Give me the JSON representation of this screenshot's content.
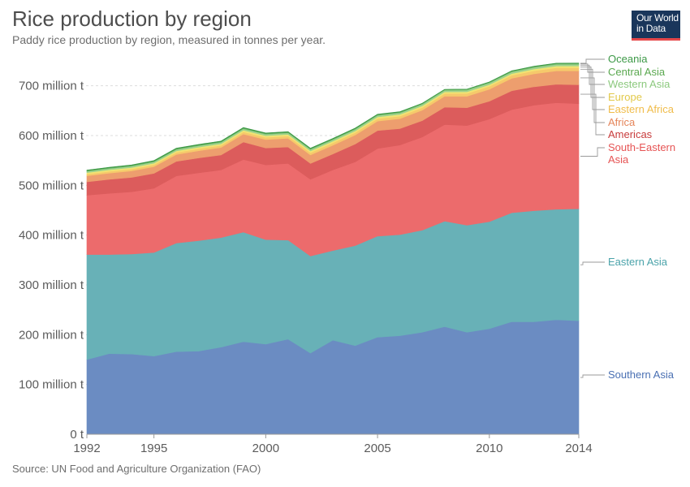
{
  "header": {
    "title": "Rice production by region",
    "subtitle": "Paddy rice production by region, measured in tonnes per year.",
    "logo_line1": "Our World",
    "logo_line2": "in Data"
  },
  "footer": {
    "source": "Source: UN Food and Agriculture Organization (FAO)"
  },
  "chart_data": {
    "type": "area",
    "stacked": true,
    "title": "Rice production by region",
    "subtitle": "Paddy rice production by region, measured in tonnes per year.",
    "xlabel": "",
    "ylabel": "",
    "xlim": [
      1992,
      2014
    ],
    "ylim": [
      0,
      750000000
    ],
    "x_ticks": [
      "1992",
      "1995",
      "2000",
      "2005",
      "2010",
      "2014"
    ],
    "x_tick_values": [
      1992,
      1995,
      2000,
      2005,
      2010,
      2014
    ],
    "y_ticks": [
      "0 t",
      "100 million t",
      "200 million t",
      "300 million t",
      "400 million t",
      "500 million t",
      "600 million t",
      "700 million t"
    ],
    "y_tick_values": [
      0,
      100000000,
      200000000,
      300000000,
      400000000,
      500000000,
      600000000,
      700000000
    ],
    "grid": "horizontal dashed",
    "legend": "right",
    "x": [
      1992,
      1993,
      1994,
      1995,
      1996,
      1997,
      1998,
      1999,
      2000,
      2001,
      2002,
      2003,
      2004,
      2005,
      2006,
      2007,
      2008,
      2009,
      2010,
      2011,
      2012,
      2013,
      2014
    ],
    "series": [
      {
        "name": "Southern Asia",
        "color": "#6b8cc2",
        "values": [
          150000000,
          162000000,
          161000000,
          157000000,
          166000000,
          167000000,
          175000000,
          186000000,
          181000000,
          191000000,
          163000000,
          189000000,
          178000000,
          195000000,
          198000000,
          205000000,
          216000000,
          205000000,
          212000000,
          226000000,
          226000000,
          230000000,
          228000000
        ]
      },
      {
        "name": "Eastern Asia",
        "color": "#68b1b7",
        "values": [
          211000000,
          199000000,
          201000000,
          208000000,
          218000000,
          222000000,
          220000000,
          220000000,
          210000000,
          199000000,
          195000000,
          180000000,
          201000000,
          203000000,
          203000000,
          205000000,
          212000000,
          215000000,
          215000000,
          219000000,
          223000000,
          222000000,
          225000000
        ]
      },
      {
        "name": "South-Eastern Asia",
        "color": "#ec6b6c",
        "values": [
          119000000,
          123000000,
          125000000,
          129000000,
          135000000,
          136000000,
          136000000,
          146000000,
          150000000,
          154000000,
          154000000,
          162000000,
          168000000,
          176000000,
          180000000,
          187000000,
          194000000,
          200000000,
          206000000,
          207000000,
          212000000,
          214000000,
          211000000
        ]
      },
      {
        "name": "Americas",
        "color": "#dc5c5c",
        "values": [
          27000000,
          28000000,
          29000000,
          30000000,
          29000000,
          30000000,
          30000000,
          35000000,
          34000000,
          33000000,
          32000000,
          32000000,
          36000000,
          36000000,
          33000000,
          33000000,
          35000000,
          36000000,
          36000000,
          38000000,
          37000000,
          37000000,
          38000000
        ]
      },
      {
        "name": "Africa",
        "color": "#ed9e6e",
        "values": [
          12000000,
          12500000,
          13000000,
          13500000,
          14000000,
          14500000,
          15000000,
          16000000,
          17000000,
          17500000,
          17000000,
          17500000,
          18000000,
          19000000,
          20000000,
          21000000,
          22000000,
          23000000,
          24000000,
          25000000,
          26000000,
          27000000,
          28000000
        ]
      },
      {
        "name": "Eastern Africa",
        "color": "#f6c96b",
        "values": [
          3500000,
          3600000,
          3700000,
          3800000,
          4000000,
          4100000,
          4200000,
          4400000,
          4500000,
          4600000,
          4700000,
          4800000,
          4900000,
          5000000,
          5100000,
          5200000,
          5400000,
          5600000,
          5800000,
          6000000,
          6100000,
          6200000,
          6300000
        ]
      },
      {
        "name": "Europe",
        "color": "#f2e372",
        "values": [
          3000000,
          3000000,
          3000000,
          3100000,
          3100000,
          3100000,
          3200000,
          3200000,
          3200000,
          3200000,
          3300000,
          3300000,
          3300000,
          3300000,
          3300000,
          3300000,
          3300000,
          3400000,
          3400000,
          3400000,
          3400000,
          3400000,
          3400000
        ]
      },
      {
        "name": "Western Asia",
        "color": "#9fd38f",
        "values": [
          2500000,
          2500000,
          2600000,
          2600000,
          2700000,
          2700000,
          2800000,
          2800000,
          2800000,
          2900000,
          2900000,
          2900000,
          3000000,
          3000000,
          3000000,
          3100000,
          3100000,
          3100000,
          3200000,
          3200000,
          3200000,
          3300000,
          3300000
        ]
      },
      {
        "name": "Central Asia",
        "color": "#7bbf71",
        "values": [
          1500000,
          1500000,
          1500000,
          1500000,
          1500000,
          1500000,
          1500000,
          1500000,
          1500000,
          1500000,
          1500000,
          1500000,
          1600000,
          1600000,
          1600000,
          1600000,
          1600000,
          1700000,
          1700000,
          1700000,
          1700000,
          1700000,
          1700000
        ]
      },
      {
        "name": "Oceania",
        "color": "#3d9947",
        "values": [
          1200000,
          1200000,
          1200000,
          1300000,
          1300000,
          1300000,
          1300000,
          1300000,
          1200000,
          1200000,
          1200000,
          1200000,
          1200000,
          1000000,
          1000000,
          700000,
          500000,
          500000,
          600000,
          800000,
          900000,
          900000,
          900000
        ]
      }
    ],
    "legend_labels": [
      {
        "text": "Oceania",
        "color": "#3d9947"
      },
      {
        "text": "Central Asia",
        "color": "#5aa84f"
      },
      {
        "text": "Western Asia",
        "color": "#8cc97e"
      },
      {
        "text": "Europe",
        "color": "#e2c94a"
      },
      {
        "text": "Eastern Africa",
        "color": "#f0bc4a"
      },
      {
        "text": "Africa",
        "color": "#e5855a"
      },
      {
        "text": "Americas",
        "color": "#c83c3c"
      },
      {
        "text": "South-Eastern",
        "color": "#e65454"
      },
      {
        "text": "Asia",
        "color": "#e65454"
      },
      {
        "text": "Eastern Asia",
        "color": "#4aa3aa"
      },
      {
        "text": "Southern Asia",
        "color": "#4a70b3"
      }
    ]
  }
}
